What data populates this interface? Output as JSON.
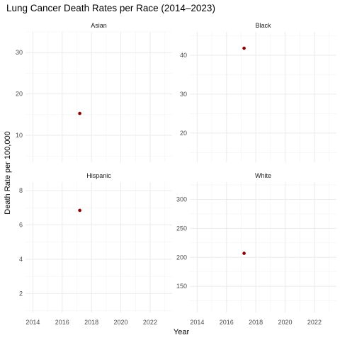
{
  "chart_data": {
    "type": "scatter",
    "title": "Lung Cancer Death Rates per Race (2014–2023)",
    "xlabel": "Year",
    "ylabel": "Death Rate per 100,000",
    "grid": true,
    "point_color": "#8b0000",
    "x_ticks": [
      "2014",
      "2016",
      "2018",
      "2020",
      "2022"
    ],
    "x_range": [
      2013.5,
      2023.5
    ],
    "panels": [
      {
        "name": "Asian",
        "y_range": [
          3.5,
          35
        ],
        "y_ticks": [
          10,
          20,
          30
        ],
        "points": [
          {
            "x": 2017.2,
            "y": 15.3
          }
        ]
      },
      {
        "name": "Black",
        "y_range": [
          12.5,
          46
        ],
        "y_ticks": [
          20,
          30,
          40
        ],
        "points": [
          {
            "x": 2017.2,
            "y": 41.8
          }
        ]
      },
      {
        "name": "Hispanic",
        "y_range": [
          0.9,
          8.5
        ],
        "y_ticks": [
          2,
          4,
          6,
          8
        ],
        "points": [
          {
            "x": 2017.2,
            "y": 6.85
          }
        ]
      },
      {
        "name": "White",
        "y_range": [
          105,
          330
        ],
        "y_ticks": [
          150,
          200,
          250,
          300
        ],
        "points": [
          {
            "x": 2017.2,
            "y": 207
          }
        ]
      }
    ]
  }
}
